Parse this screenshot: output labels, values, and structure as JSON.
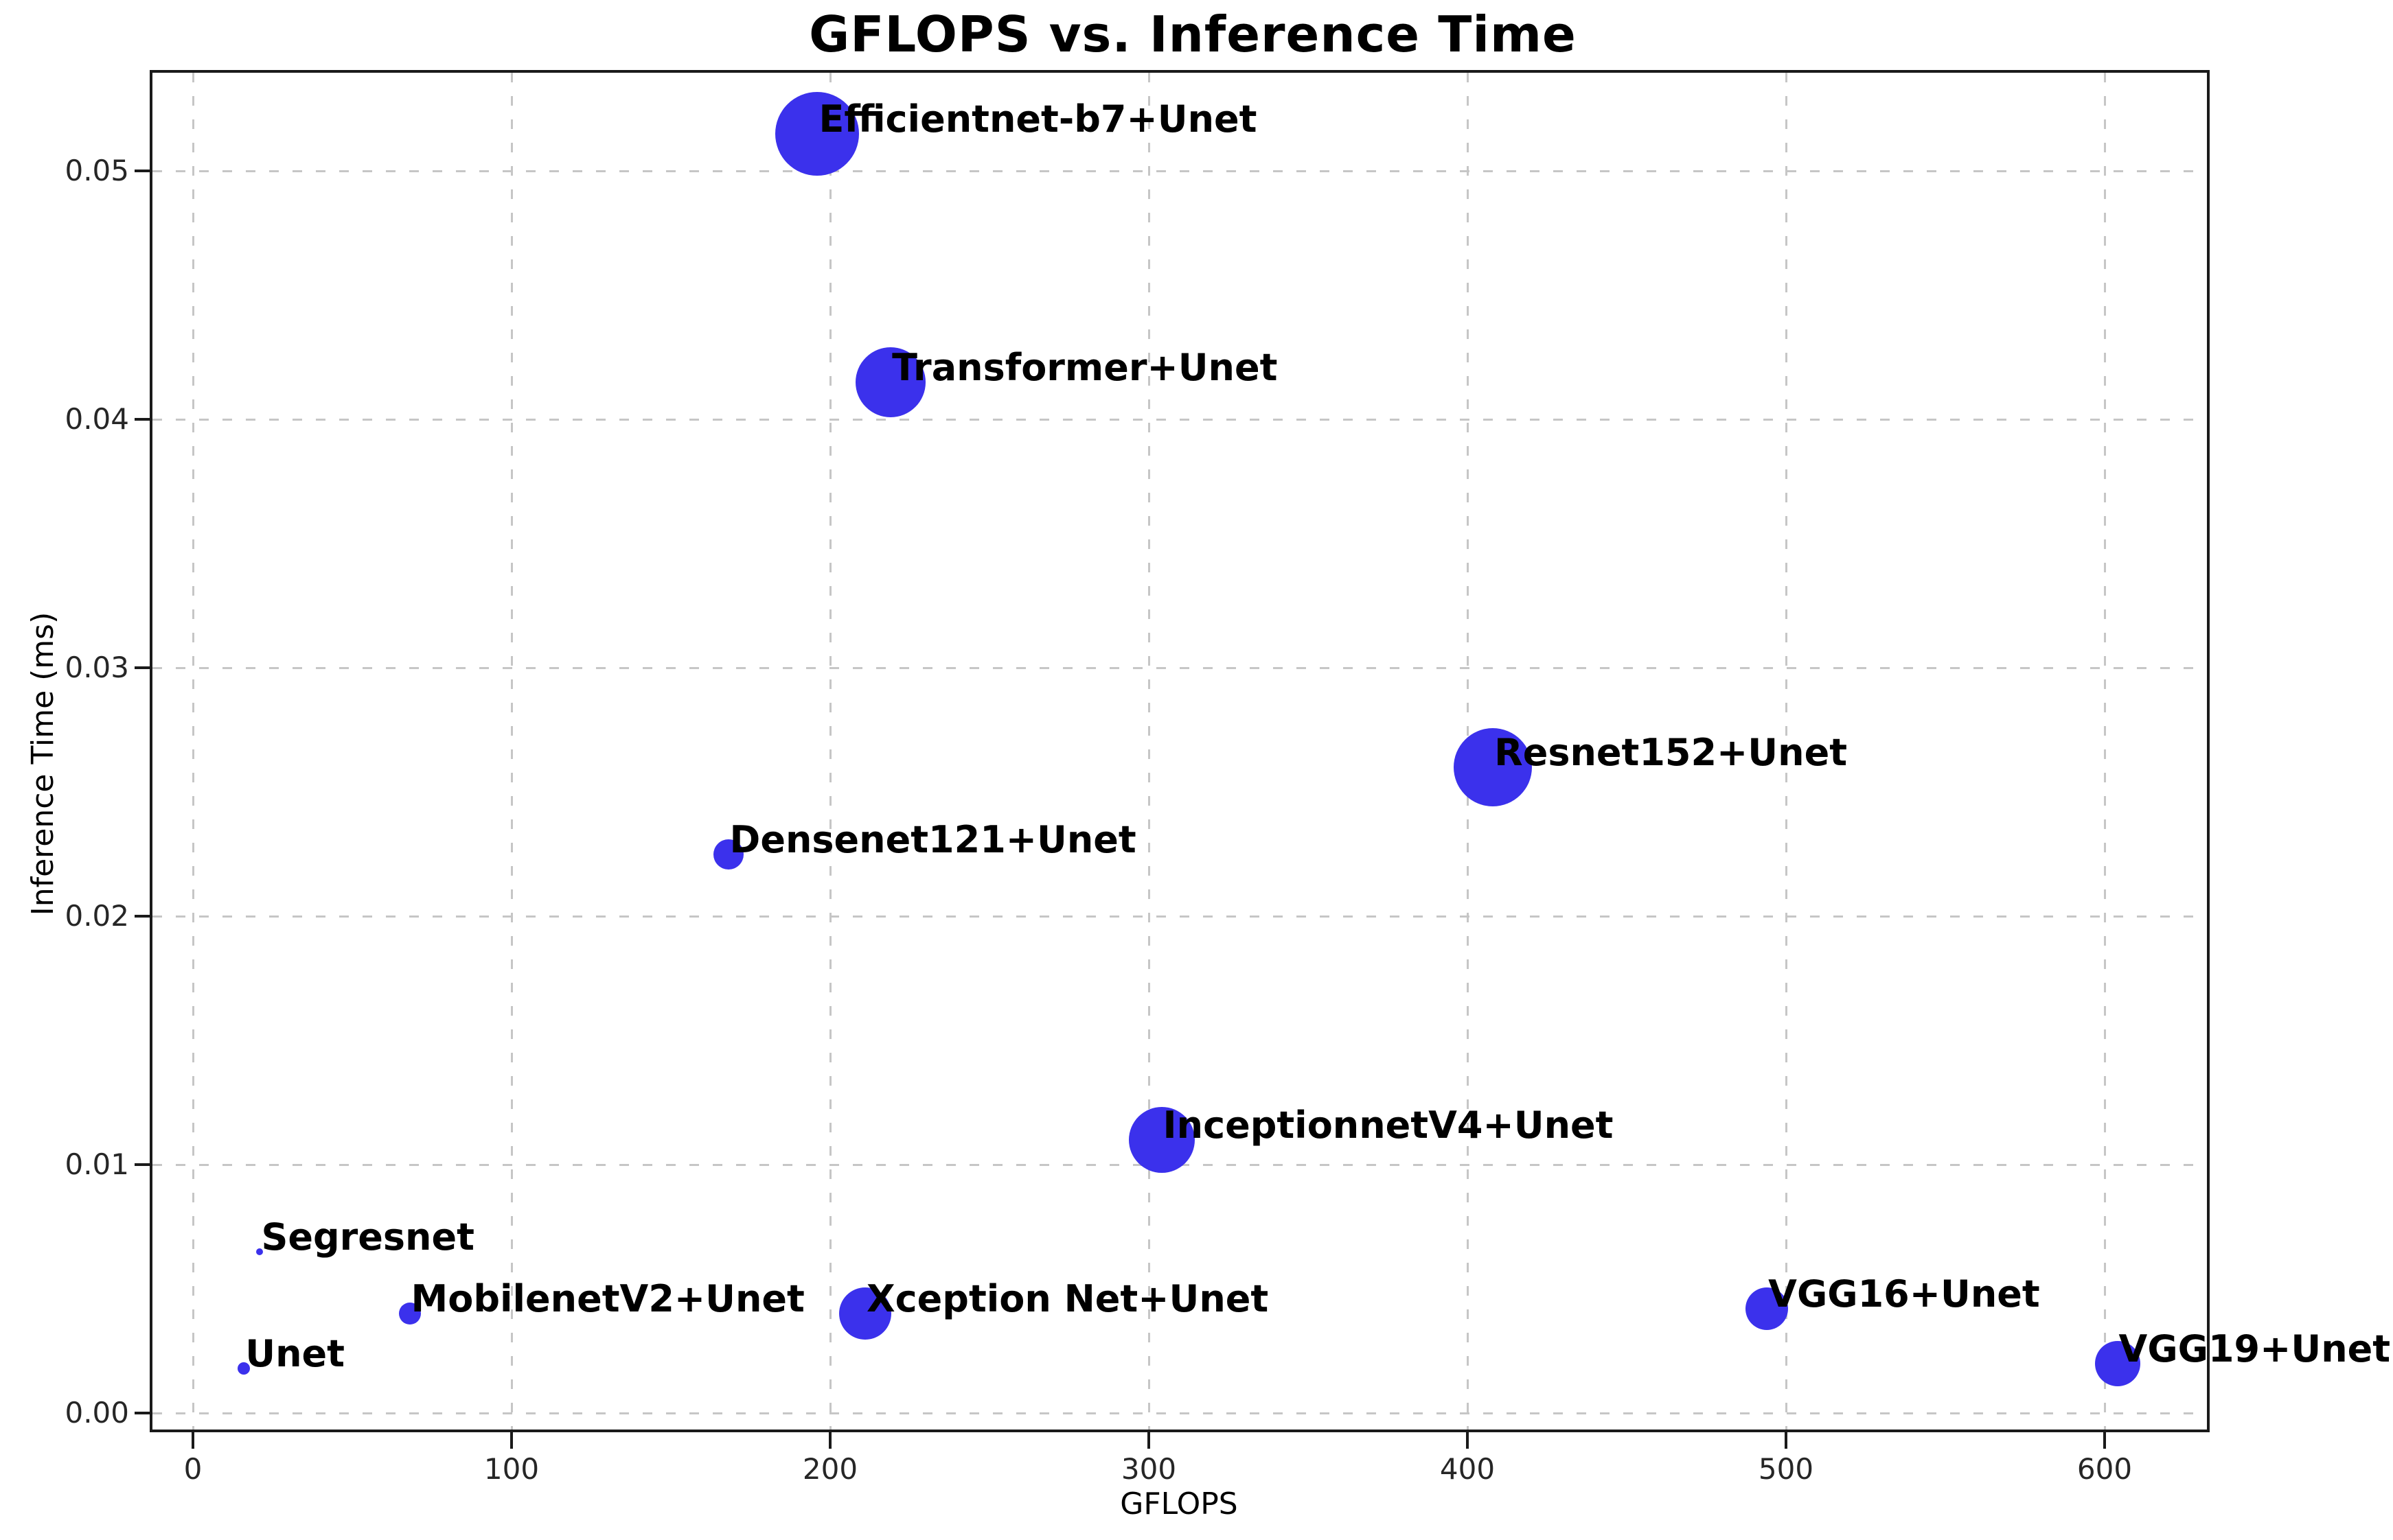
{
  "figure": {
    "background": "#ffffff"
  },
  "colors": {
    "marker": "#3b31ec",
    "grid": "#c6c6c6",
    "spine": "#1a1a1a",
    "tick_label": "#262626",
    "text": "#000000"
  },
  "chart_data": {
    "type": "scatter",
    "title": "GFLOPS vs. Inference Time",
    "xlabel": "GFLOPS",
    "ylabel": "Inference Time (ms)",
    "xlim": [
      -13,
      632
    ],
    "ylim": [
      -0.0007,
      0.054
    ],
    "grid": true,
    "legend_position": "none",
    "x_ticks": [
      0,
      100,
      200,
      300,
      400,
      500,
      600
    ],
    "x_tick_labels": [
      "0",
      "100",
      "200",
      "300",
      "400",
      "500",
      "600"
    ],
    "y_ticks": [
      0.0,
      0.01,
      0.02,
      0.03,
      0.04,
      0.05
    ],
    "y_tick_labels": [
      "0.00",
      "0.01",
      "0.02",
      "0.03",
      "0.04",
      "0.05"
    ],
    "points": [
      {
        "label": "Unet",
        "gflops": 16,
        "inference_time_ms": 0.0018,
        "marker_radius_px": 9
      },
      {
        "label": "Segresnet",
        "gflops": 21,
        "inference_time_ms": 0.0065,
        "marker_radius_px": 5
      },
      {
        "label": "MobilenetV2+Unet",
        "gflops": 68,
        "inference_time_ms": 0.004,
        "marker_radius_px": 16
      },
      {
        "label": "Densenet121+Unet",
        "gflops": 168,
        "inference_time_ms": 0.0225,
        "marker_radius_px": 22
      },
      {
        "label": "Efficientnet-b7+Unet",
        "gflops": 196,
        "inference_time_ms": 0.0515,
        "marker_radius_px": 61
      },
      {
        "label": "Xception Net+Unet",
        "gflops": 211,
        "inference_time_ms": 0.004,
        "marker_radius_px": 38
      },
      {
        "label": "Transformer+Unet",
        "gflops": 219,
        "inference_time_ms": 0.0415,
        "marker_radius_px": 51
      },
      {
        "label": "InceptionnetV4+Unet",
        "gflops": 304,
        "inference_time_ms": 0.011,
        "marker_radius_px": 48
      },
      {
        "label": "Resnet152+Unet",
        "gflops": 408,
        "inference_time_ms": 0.026,
        "marker_radius_px": 57
      },
      {
        "label": "VGG16+Unet",
        "gflops": 494,
        "inference_time_ms": 0.0042,
        "marker_radius_px": 31
      },
      {
        "label": "VGG19+Unet",
        "gflops": 604,
        "inference_time_ms": 0.002,
        "marker_radius_px": 33
      }
    ]
  }
}
